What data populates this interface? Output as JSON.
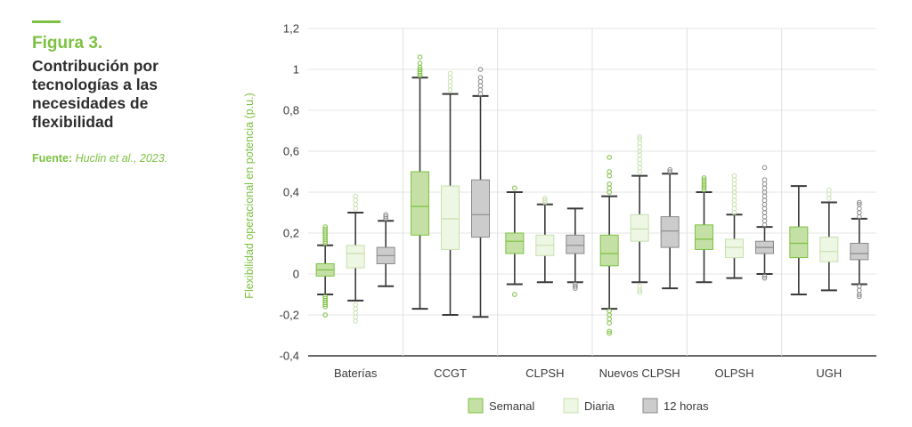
{
  "figure": {
    "label": "Figura 3.",
    "title": "Contribución por tecnologías a las necesidades de flexibilidad",
    "source_prefix": "Fuente:",
    "source_text": "Huclin et al., 2023."
  },
  "chart_data": {
    "type": "boxplot",
    "ylabel": "Flexibilidad operacional en potencia (p.u.)",
    "ylim": [
      -0.4,
      1.2
    ],
    "yticks": [
      -0.4,
      -0.2,
      0,
      0.2,
      0.4,
      0.6,
      0.8,
      1,
      1.2
    ],
    "ytick_labels": [
      "-0,4",
      "-0,2",
      "0",
      "0,2",
      "0,4",
      "0,6",
      "0,8",
      "1",
      "1,2"
    ],
    "grid": "vertical-separators",
    "legend_position": "bottom",
    "categories": [
      "Baterías",
      "CCGT",
      "CLPSH",
      "Nuevos CLPSH",
      "OLPSH",
      "UGH"
    ],
    "series": [
      {
        "name": "Semanal",
        "fill": "#c5e0a5",
        "stroke": "#7dc142",
        "boxes": [
          {
            "whislo": -0.1,
            "q1": -0.01,
            "med": 0.02,
            "q3": 0.05,
            "whishi": 0.14,
            "outliers": [
              0.15,
              0.16,
              0.17,
              0.18,
              0.19,
              0.2,
              0.21,
              0.22,
              0.23,
              -0.11,
              -0.12,
              -0.13,
              -0.14,
              -0.15,
              -0.16,
              -0.2
            ]
          },
          {
            "whislo": -0.17,
            "q1": 0.19,
            "med": 0.33,
            "q3": 0.5,
            "whishi": 0.96,
            "outliers": [
              0.97,
              0.98,
              0.99,
              1.0,
              1.01,
              1.03,
              1.06
            ]
          },
          {
            "whislo": -0.05,
            "q1": 0.1,
            "med": 0.16,
            "q3": 0.2,
            "whishi": 0.4,
            "outliers": [
              0.42,
              -0.1
            ]
          },
          {
            "whislo": -0.17,
            "q1": 0.04,
            "med": 0.1,
            "q3": 0.19,
            "whishi": 0.38,
            "outliers": [
              0.4,
              0.42,
              0.44,
              0.48,
              0.5,
              0.57,
              -0.18,
              -0.2,
              -0.22,
              -0.24,
              -0.28,
              -0.29
            ]
          },
          {
            "whislo": -0.04,
            "q1": 0.12,
            "med": 0.17,
            "q3": 0.24,
            "whishi": 0.4,
            "outliers": [
              0.41,
              0.42,
              0.43,
              0.44,
              0.45,
              0.46,
              0.47
            ]
          },
          {
            "whislo": -0.1,
            "q1": 0.08,
            "med": 0.15,
            "q3": 0.23,
            "whishi": 0.43,
            "outliers": []
          }
        ]
      },
      {
        "name": "Diaria",
        "fill": "#eef6e4",
        "stroke": "#c8e0ae",
        "boxes": [
          {
            "whislo": -0.13,
            "q1": 0.03,
            "med": 0.1,
            "q3": 0.14,
            "whishi": 0.3,
            "outliers": [
              0.32,
              0.34,
              0.36,
              0.38,
              -0.15,
              -0.17,
              -0.19,
              -0.21,
              -0.23
            ]
          },
          {
            "whislo": -0.2,
            "q1": 0.12,
            "med": 0.27,
            "q3": 0.43,
            "whishi": 0.88,
            "outliers": [
              0.9,
              0.92,
              0.94,
              0.96,
              0.98
            ]
          },
          {
            "whislo": -0.04,
            "q1": 0.09,
            "med": 0.14,
            "q3": 0.19,
            "whishi": 0.34,
            "outliers": [
              0.35,
              0.36,
              0.37
            ]
          },
          {
            "whislo": -0.04,
            "q1": 0.16,
            "med": 0.22,
            "q3": 0.29,
            "whishi": 0.48,
            "outliers": [
              0.5,
              0.52,
              0.54,
              0.56,
              0.58,
              0.6,
              0.62,
              0.64,
              0.66,
              0.67,
              -0.06,
              -0.08,
              -0.09
            ]
          },
          {
            "whislo": -0.02,
            "q1": 0.08,
            "med": 0.13,
            "q3": 0.17,
            "whishi": 0.29,
            "outliers": [
              0.3,
              0.32,
              0.34,
              0.36,
              0.38,
              0.4,
              0.42,
              0.44,
              0.46,
              0.48
            ]
          },
          {
            "whislo": -0.08,
            "q1": 0.06,
            "med": 0.11,
            "q3": 0.18,
            "whishi": 0.35,
            "outliers": [
              0.37,
              0.39,
              0.41
            ]
          }
        ]
      },
      {
        "name": "12 horas",
        "fill": "#cccccc",
        "stroke": "#8a8a8a",
        "boxes": [
          {
            "whislo": -0.06,
            "q1": 0.05,
            "med": 0.09,
            "q3": 0.13,
            "whishi": 0.26,
            "outliers": [
              0.27,
              0.28,
              0.29
            ]
          },
          {
            "whislo": -0.21,
            "q1": 0.18,
            "med": 0.29,
            "q3": 0.46,
            "whishi": 0.87,
            "outliers": [
              0.88,
              0.9,
              0.92,
              0.94,
              0.96,
              1.0
            ]
          },
          {
            "whislo": -0.04,
            "q1": 0.1,
            "med": 0.14,
            "q3": 0.19,
            "whishi": 0.32,
            "outliers": [
              -0.05,
              -0.06,
              -0.07
            ]
          },
          {
            "whislo": -0.07,
            "q1": 0.13,
            "med": 0.21,
            "q3": 0.28,
            "whishi": 0.49,
            "outliers": [
              0.5,
              0.51
            ]
          },
          {
            "whislo": 0.0,
            "q1": 0.1,
            "med": 0.13,
            "q3": 0.16,
            "whishi": 0.23,
            "outliers": [
              0.24,
              0.26,
              0.28,
              0.3,
              0.32,
              0.34,
              0.36,
              0.38,
              0.4,
              0.42,
              0.44,
              0.46,
              0.52,
              -0.01,
              -0.02
            ]
          },
          {
            "whislo": -0.05,
            "q1": 0.07,
            "med": 0.1,
            "q3": 0.15,
            "whishi": 0.27,
            "outliers": [
              0.28,
              0.3,
              0.32,
              0.34,
              0.35,
              -0.06,
              -0.08,
              -0.1,
              -0.11
            ]
          }
        ]
      }
    ]
  }
}
